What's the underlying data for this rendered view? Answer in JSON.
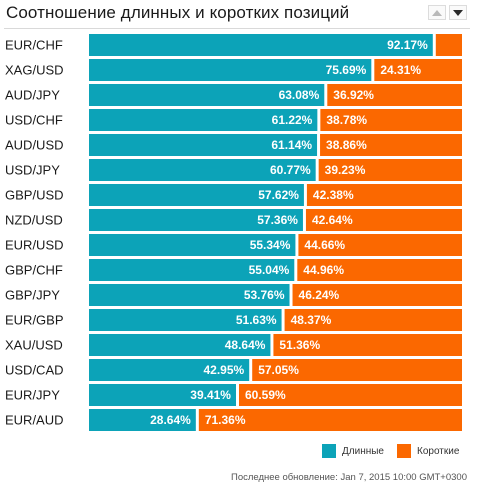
{
  "title": "Соотношение длинных и коротких позиций",
  "colors": {
    "long": "#0ca3b8",
    "short": "#fb6800",
    "label_text": "#ffffff"
  },
  "sort_controls": {
    "asc_icon": "triangle-up-icon",
    "desc_icon": "triangle-down-icon"
  },
  "chart_data": {
    "type": "bar",
    "orientation": "horizontal",
    "stacked": "percent",
    "categories": [
      "EUR/CHF",
      "XAG/USD",
      "AUD/JPY",
      "USD/CHF",
      "AUD/USD",
      "USD/JPY",
      "GBP/USD",
      "NZD/USD",
      "EUR/USD",
      "GBP/CHF",
      "GBP/JPY",
      "EUR/GBP",
      "XAU/USD",
      "USD/CAD",
      "EUR/JPY",
      "EUR/AUD"
    ],
    "series": [
      {
        "name": "Длинные",
        "values": [
          92.17,
          75.69,
          63.08,
          61.22,
          61.14,
          60.77,
          57.62,
          57.36,
          55.34,
          55.04,
          53.76,
          51.63,
          48.64,
          42.95,
          39.41,
          28.64
        ],
        "labels": [
          "92.17%",
          "75.69%",
          "63.08%",
          "61.22%",
          "61.14%",
          "60.77%",
          "57.62%",
          "57.36%",
          "55.34%",
          "55.04%",
          "53.76%",
          "51.63%",
          "48.64%",
          "42.95%",
          "39.41%",
          "28.64%"
        ]
      },
      {
        "name": "Короткие",
        "values": [
          7.83,
          24.31,
          36.92,
          38.78,
          38.86,
          39.23,
          42.38,
          42.64,
          44.66,
          44.96,
          46.24,
          48.37,
          51.36,
          57.05,
          60.59,
          71.36
        ],
        "labels": [
          "",
          "24.31%",
          "36.92%",
          "38.78%",
          "38.86%",
          "39.23%",
          "42.38%",
          "42.64%",
          "44.66%",
          "44.96%",
          "46.24%",
          "48.37%",
          "51.36%",
          "57.05%",
          "60.59%",
          "71.36%"
        ]
      }
    ],
    "xlim": [
      0,
      100
    ],
    "legend": "bottom-right",
    "grid": false
  },
  "legend": {
    "long_label": "Длинные",
    "short_label": "Короткие"
  },
  "last_updated": {
    "label": "Последнее обновление:",
    "value": "Jan 7, 2015 10:00 GMT+0300"
  }
}
